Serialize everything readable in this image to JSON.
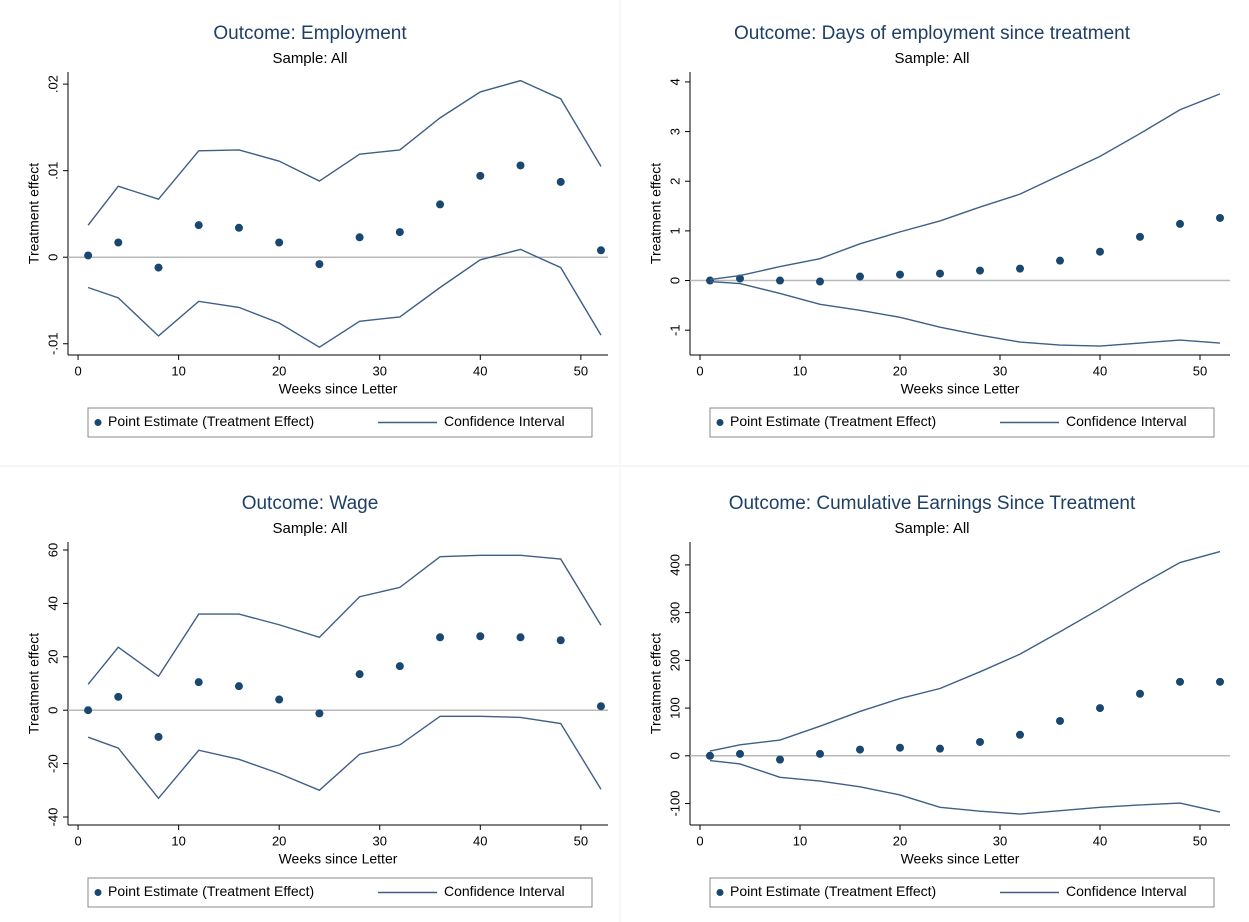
{
  "chart_data": [
    {
      "type": "coefplot",
      "title": "Outcome: Employment",
      "subtitle": "Sample: All",
      "x_label": "Weeks since Letter",
      "y_label": "Treatment effect",
      "x": [
        1,
        4,
        8,
        12,
        16,
        20,
        24,
        28,
        32,
        36,
        40,
        44,
        48,
        52
      ],
      "series": [
        {
          "name": "Point Estimate (Treatment Effect)",
          "color": "#1a476f",
          "values": [
            0.0002,
            0.0017,
            -0.0012,
            0.0037,
            0.0034,
            0.0017,
            -0.0008,
            0.0023,
            0.0029,
            0.0061,
            0.0094,
            0.0106,
            0.0087,
            0.0008
          ]
        },
        {
          "name": "Confidence Interval",
          "color": "#3e5f86",
          "upper": [
            0.0037,
            0.0082,
            0.0067,
            0.0123,
            0.0124,
            0.0111,
            0.0088,
            0.0119,
            0.0124,
            0.0161,
            0.0191,
            0.0204,
            0.0183,
            0.0105
          ],
          "lower": [
            -0.0035,
            -0.0047,
            -0.0091,
            -0.0051,
            -0.0058,
            -0.0076,
            -0.0104,
            -0.0074,
            -0.0069,
            -0.0035,
            -0.0003,
            0.0009,
            -0.0012,
            -0.009
          ]
        }
      ],
      "xlim": [
        -1,
        52.7
      ],
      "xticks": [
        0,
        10,
        20,
        30,
        40,
        50
      ],
      "ylim": [
        -0.0113,
        0.0214
      ],
      "yticks": [
        {
          "value": -0.01,
          "label": "-.01"
        },
        0,
        {
          "value": 0.01,
          "label": ".01"
        },
        {
          "value": 0.02,
          "label": ".02"
        }
      ],
      "yline": 0,
      "grid": false
    },
    {
      "type": "coefplot",
      "title": "Outcome: Days of employment since treatment",
      "subtitle": "Sample: All",
      "x_label": "Weeks since Letter",
      "y_label": "Treatment effect",
      "x": [
        1,
        4,
        8,
        12,
        16,
        20,
        24,
        28,
        32,
        36,
        40,
        44,
        48,
        52
      ],
      "series": [
        {
          "name": "Point Estimate (Treatment Effect)",
          "color": "#1a476f",
          "values": [
            0,
            0.04,
            0,
            -0.02,
            0.08,
            0.12,
            0.14,
            0.2,
            0.24,
            0.4,
            0.58,
            0.88,
            1.14,
            1.26
          ]
        },
        {
          "name": "Confidence Interval",
          "color": "#3e5f86",
          "upper": [
            0.02,
            0.1,
            0.28,
            0.44,
            0.74,
            0.98,
            1.2,
            1.48,
            1.74,
            2.12,
            2.5,
            2.96,
            3.44,
            3.76
          ],
          "lower": [
            -0.02,
            -0.06,
            -0.26,
            -0.48,
            -0.6,
            -0.74,
            -0.94,
            -1.1,
            -1.24,
            -1.3,
            -1.32,
            -1.26,
            -1.2,
            -1.26
          ]
        }
      ],
      "xlim": [
        -1,
        53
      ],
      "xticks": [
        0,
        10,
        20,
        30,
        40,
        50
      ],
      "ylim": [
        -1.5,
        4.2
      ],
      "yticks": [
        -1,
        0,
        1,
        2,
        3,
        4
      ],
      "yline": 0,
      "grid": false
    },
    {
      "type": "coefplot",
      "title": "Outcome: Wage",
      "subtitle": "Sample: All",
      "x_label": "Weeks since Letter",
      "y_label": "Treatment effect",
      "x": [
        1,
        4,
        8,
        12,
        16,
        20,
        24,
        28,
        32,
        36,
        40,
        44,
        48,
        52
      ],
      "series": [
        {
          "name": "Point Estimate (Treatment Effect)",
          "color": "#1a476f",
          "values": [
            0,
            5,
            -10,
            10.5,
            9,
            4,
            -1.2,
            13.5,
            16.5,
            27.3,
            27.7,
            27.3,
            26.2,
            1.5
          ]
        },
        {
          "name": "Confidence Interval",
          "color": "#3e5f86",
          "upper": [
            9.7,
            23.6,
            12.7,
            36,
            36,
            32,
            27.3,
            42.5,
            46,
            57.5,
            58,
            58,
            56.6,
            31.8
          ],
          "lower": [
            -10.1,
            -14.2,
            -33,
            -15,
            -18.4,
            -23.7,
            -30,
            -16.5,
            -13,
            -2.3,
            -2.3,
            -2.7,
            -5,
            -29.6
          ]
        }
      ],
      "xlim": [
        -1,
        52.7
      ],
      "xticks": [
        0,
        10,
        20,
        30,
        40,
        50
      ],
      "ylim": [
        -43,
        63
      ],
      "yticks": [
        -40,
        -20,
        0,
        20,
        40,
        60
      ],
      "yline": 0,
      "grid": false
    },
    {
      "type": "coefplot",
      "title": "Outcome: Cumulative Earnings Since Treatment",
      "subtitle": "Sample: All",
      "x_label": "Weeks since Letter",
      "y_label": "Treatment effect",
      "x": [
        1,
        4,
        8,
        12,
        16,
        20,
        24,
        28,
        32,
        36,
        40,
        44,
        48,
        52
      ],
      "series": [
        {
          "name": "Point Estimate (Treatment Effect)",
          "color": "#1a476f",
          "values": [
            0,
            4,
            -8,
            4,
            13,
            17,
            15,
            29,
            44,
            73,
            100,
            130,
            155,
            155
          ]
        },
        {
          "name": "Confidence Interval",
          "color": "#3e5f86",
          "upper": [
            10,
            23,
            33,
            62,
            93,
            120,
            141,
            176,
            213,
            260,
            308,
            358,
            405,
            428
          ],
          "lower": [
            -10,
            -17,
            -45,
            -53,
            -65,
            -82,
            -108,
            -116,
            -122,
            -115,
            -108,
            -103,
            -99,
            -118
          ]
        }
      ],
      "xlim": [
        -1,
        53
      ],
      "xticks": [
        0,
        10,
        20,
        30,
        40,
        50
      ],
      "ylim": [
        -145,
        448
      ],
      "yticks": [
        -100,
        0,
        100,
        200,
        300,
        400
      ],
      "yline": 0,
      "grid": false
    }
  ]
}
